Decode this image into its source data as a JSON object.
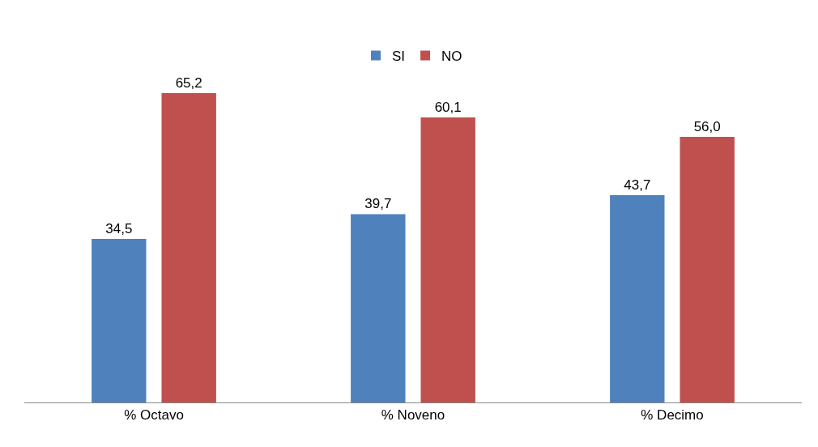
{
  "chart_data": {
    "type": "bar",
    "categories": [
      "% Octavo",
      "% Noveno",
      "% Decimo"
    ],
    "series": [
      {
        "name": "SI",
        "color": "#4f81bd",
        "values": [
          34.5,
          39.7,
          43.7
        ],
        "value_labels": [
          "34,5",
          "39,7",
          "43,7"
        ]
      },
      {
        "name": "NO",
        "color": "#c0504d",
        "values": [
          65.2,
          60.1,
          56.0
        ],
        "value_labels": [
          "65,2",
          "60,1",
          "56,0"
        ]
      }
    ],
    "legend": "top"
  }
}
